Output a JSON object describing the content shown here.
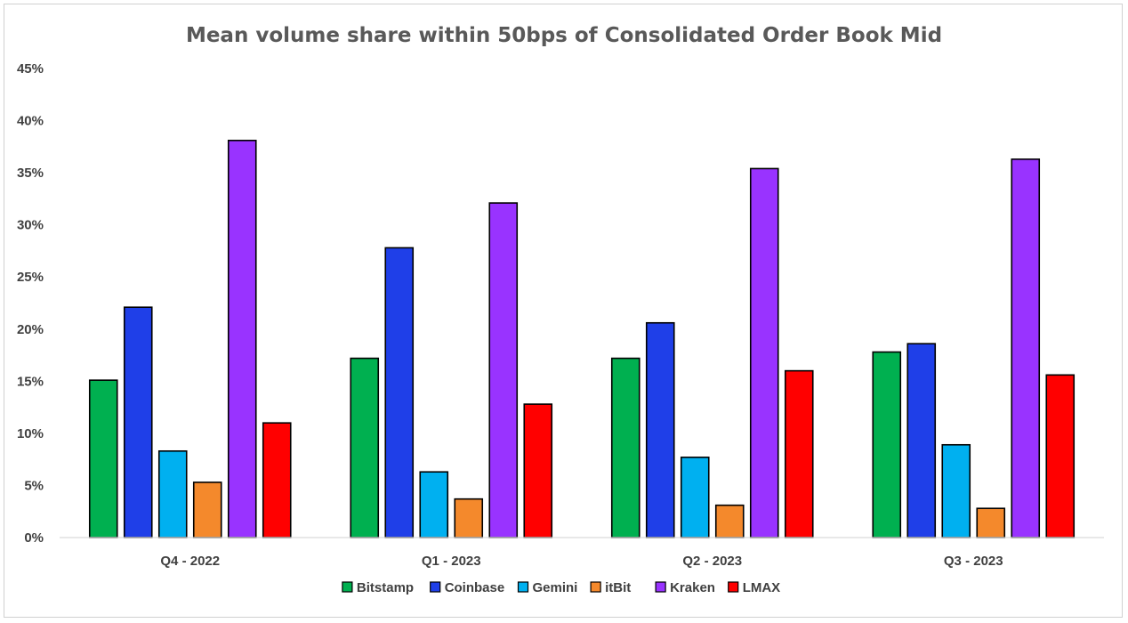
{
  "chart_data": {
    "type": "bar",
    "title": "Mean volume share within 50bps of Consolidated Order Book Mid",
    "xlabel": "",
    "ylabel": "",
    "ylim": [
      0,
      45
    ],
    "yticks": [
      0,
      5,
      10,
      15,
      20,
      25,
      30,
      35,
      40,
      45
    ],
    "ytick_labels": [
      "0%",
      "5%",
      "10%",
      "15%",
      "20%",
      "25%",
      "30%",
      "35%",
      "40%",
      "45%"
    ],
    "grid": false,
    "legend_position": "bottom",
    "categories": [
      "Q4 - 2022",
      "Q1 - 2023",
      "Q2 - 2023",
      "Q3 - 2023"
    ],
    "series": [
      {
        "name": "Bitstamp",
        "color": "#00b050",
        "values": [
          15.1,
          17.2,
          17.2,
          17.8
        ]
      },
      {
        "name": "Coinbase",
        "color": "#1f3fe8",
        "values": [
          22.1,
          27.8,
          20.6,
          18.6
        ]
      },
      {
        "name": "Gemini",
        "color": "#00b0f0",
        "values": [
          8.3,
          6.3,
          7.7,
          8.9
        ]
      },
      {
        "name": "itBit",
        "color": "#f4892c",
        "values": [
          5.3,
          3.7,
          3.1,
          2.8
        ]
      },
      {
        "name": "Kraken",
        "color": "#9933ff",
        "values": [
          38.1,
          32.1,
          35.4,
          36.3
        ]
      },
      {
        "name": "LMAX",
        "color": "#ff0000",
        "values": [
          11.0,
          12.8,
          16.0,
          15.6
        ]
      }
    ]
  }
}
